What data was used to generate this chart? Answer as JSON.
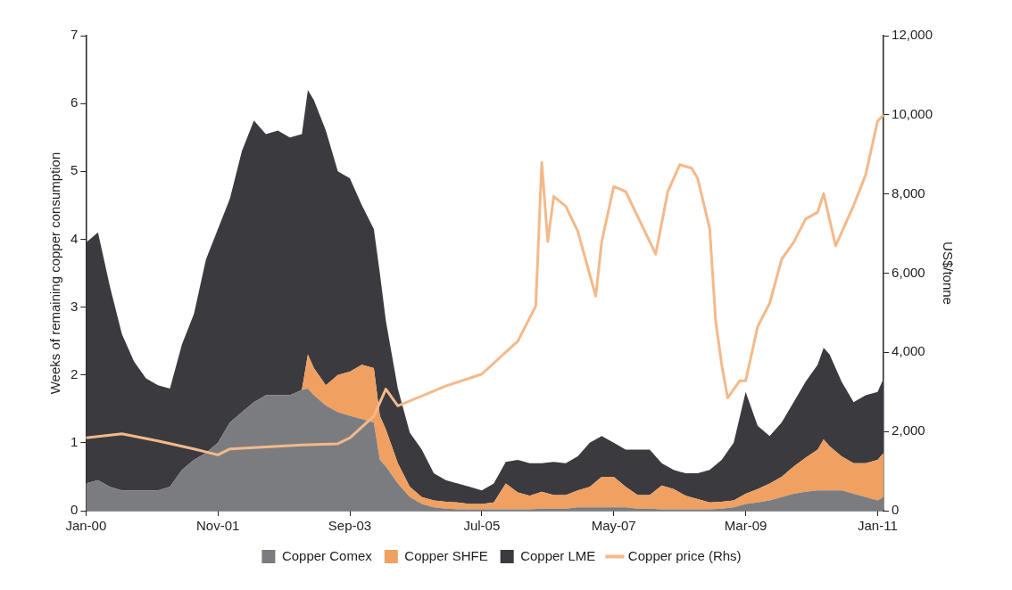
{
  "chart_data": {
    "type": "area",
    "stacked": true,
    "ylabel": "Weeks of remaining copper consumption",
    "y2label": "US$/tonne",
    "x": [
      "2000-01",
      "2000-03",
      "2000-05",
      "2000-07",
      "2000-09",
      "2000-11",
      "2001-01",
      "2001-03",
      "2001-05",
      "2001-07",
      "2001-09",
      "2001-11",
      "2002-01",
      "2002-03",
      "2002-05",
      "2002-07",
      "2002-09",
      "2002-11",
      "2003-01",
      "2003-02",
      "2003-03",
      "2003-05",
      "2003-07",
      "2003-09",
      "2003-11",
      "2004-01",
      "2004-02",
      "2004-03",
      "2004-05",
      "2004-07",
      "2004-09",
      "2004-11",
      "2005-01",
      "2005-03",
      "2005-05",
      "2005-07",
      "2005-09",
      "2005-11",
      "2006-01",
      "2006-03",
      "2006-05",
      "2006-07",
      "2006-09",
      "2006-11",
      "2007-01",
      "2007-03",
      "2007-05",
      "2007-07",
      "2007-09",
      "2007-11",
      "2008-01",
      "2008-03",
      "2008-05",
      "2008-07",
      "2008-09",
      "2008-11",
      "2009-01",
      "2009-03",
      "2009-05",
      "2009-07",
      "2009-09",
      "2009-11",
      "2010-01",
      "2010-03",
      "2010-04",
      "2010-05",
      "2010-07",
      "2010-09",
      "2010-11",
      "2011-01",
      "2011-02"
    ],
    "series": [
      {
        "name": "Copper Comex",
        "color": "#7b7c80",
        "values": [
          0.4,
          0.45,
          0.35,
          0.3,
          0.3,
          0.3,
          0.3,
          0.35,
          0.6,
          0.75,
          0.85,
          1.0,
          1.3,
          1.45,
          1.6,
          1.7,
          1.7,
          1.7,
          1.78,
          1.8,
          1.7,
          1.55,
          1.45,
          1.4,
          1.35,
          1.3,
          0.75,
          0.65,
          0.4,
          0.2,
          0.1,
          0.05,
          0.03,
          0.02,
          0.02,
          0.02,
          0.02,
          0.02,
          0.02,
          0.02,
          0.03,
          0.03,
          0.03,
          0.05,
          0.05,
          0.05,
          0.05,
          0.05,
          0.03,
          0.03,
          0.02,
          0.02,
          0.02,
          0.02,
          0.02,
          0.03,
          0.05,
          0.1,
          0.12,
          0.15,
          0.2,
          0.25,
          0.28,
          0.3,
          0.3,
          0.3,
          0.3,
          0.25,
          0.2,
          0.15,
          0.2
        ]
      },
      {
        "name": "Copper SHFE",
        "color": "#f0a060",
        "values": [
          0,
          0,
          0,
          0,
          0,
          0,
          0,
          0,
          0,
          0,
          0,
          0,
          0,
          0,
          0,
          0,
          0,
          0,
          0,
          0.5,
          0.4,
          0.3,
          0.55,
          0.65,
          0.8,
          0.8,
          0.65,
          0.55,
          0.3,
          0.15,
          0.1,
          0.1,
          0.1,
          0.1,
          0.08,
          0.08,
          0.1,
          0.38,
          0.25,
          0.2,
          0.25,
          0.2,
          0.2,
          0.25,
          0.3,
          0.45,
          0.45,
          0.3,
          0.2,
          0.2,
          0.35,
          0.3,
          0.2,
          0.15,
          0.1,
          0.1,
          0.1,
          0.15,
          0.2,
          0.25,
          0.3,
          0.4,
          0.5,
          0.6,
          0.75,
          0.65,
          0.5,
          0.45,
          0.5,
          0.6,
          0.65
        ]
      },
      {
        "name": "Copper LME",
        "color": "#3b3b3f",
        "values": [
          3.55,
          3.65,
          2.95,
          2.3,
          1.9,
          1.65,
          1.55,
          1.45,
          1.85,
          2.15,
          2.85,
          3.15,
          3.3,
          3.85,
          4.15,
          3.85,
          3.9,
          3.8,
          3.77,
          3.9,
          3.95,
          3.75,
          3.0,
          2.85,
          2.35,
          2.05,
          2.1,
          1.6,
          1.1,
          0.8,
          0.7,
          0.4,
          0.32,
          0.28,
          0.25,
          0.2,
          0.28,
          0.32,
          0.48,
          0.48,
          0.42,
          0.49,
          0.47,
          0.5,
          0.65,
          0.6,
          0.5,
          0.55,
          0.67,
          0.67,
          0.33,
          0.28,
          0.33,
          0.38,
          0.48,
          0.62,
          0.85,
          1.5,
          0.93,
          0.7,
          0.8,
          0.95,
          1.12,
          1.25,
          1.35,
          1.35,
          1.1,
          0.9,
          1.0,
          1.0,
          1.1
        ]
      },
      {
        "name": "Copper price (Rhs)",
        "type": "line",
        "axis": "y2",
        "color": "#f4b98a",
        "x": [
          "2000-01",
          "2000-07",
          "2001-01",
          "2001-07",
          "2001-11",
          "2002-01",
          "2002-07",
          "2003-01",
          "2003-07",
          "2003-09",
          "2004-01",
          "2004-03",
          "2004-05",
          "2004-07",
          "2005-01",
          "2005-07",
          "2006-01",
          "2006-04",
          "2006-05",
          "2006-06",
          "2006-07",
          "2006-09",
          "2006-11",
          "2007-02",
          "2007-03",
          "2007-05",
          "2007-07",
          "2007-09",
          "2007-12",
          "2008-02",
          "2008-04",
          "2008-06",
          "2008-07",
          "2008-09",
          "2008-10",
          "2008-11",
          "2008-12",
          "2009-02",
          "2009-03",
          "2009-05",
          "2009-07",
          "2009-09",
          "2009-11",
          "2010-01",
          "2010-03",
          "2010-04",
          "2010-06",
          "2010-07",
          "2010-09",
          "2010-11",
          "2011-01",
          "2011-02"
        ],
        "values": [
          1840,
          1940,
          1760,
          1560,
          1410,
          1560,
          1610,
          1660,
          1690,
          1840,
          2390,
          3070,
          2650,
          2770,
          3150,
          3450,
          4280,
          5170,
          8800,
          6800,
          7940,
          7690,
          7060,
          5420,
          6800,
          8190,
          8060,
          7430,
          6480,
          8050,
          8740,
          8650,
          8390,
          7130,
          4790,
          3690,
          2850,
          3280,
          3280,
          4650,
          5240,
          6350,
          6780,
          7370,
          7540,
          8010,
          6690,
          7030,
          7710,
          8480,
          9840,
          10000
        ]
      }
    ],
    "xlim": [
      "2000-01",
      "2011-02"
    ],
    "xticks": [
      {
        "value": "2000-01",
        "label": "Jan-00"
      },
      {
        "value": "2001-11",
        "label": "Nov-01"
      },
      {
        "value": "2003-09",
        "label": "Sep-03"
      },
      {
        "value": "2005-07",
        "label": "Jul-05"
      },
      {
        "value": "2007-05",
        "label": "May-07"
      },
      {
        "value": "2009-03",
        "label": "Mar-09"
      },
      {
        "value": "2011-01",
        "label": "Jan-11"
      }
    ],
    "ylim": [
      0,
      7
    ],
    "yticks": [
      0,
      1,
      2,
      3,
      4,
      5,
      6,
      7
    ],
    "y2lim": [
      0,
      12000
    ],
    "y2ticks": [
      0,
      {
        "value": 2000,
        "label": "2,000"
      },
      {
        "value": 4000,
        "label": "4,000"
      },
      {
        "value": 6000,
        "label": "6,000"
      },
      {
        "value": 8000,
        "label": "8,000"
      },
      {
        "value": 10000,
        "label": "10,000"
      },
      {
        "value": 12000,
        "label": "12,000"
      }
    ],
    "grid": false,
    "legend": "bottom",
    "marker": "none",
    "line_style": "solid"
  }
}
